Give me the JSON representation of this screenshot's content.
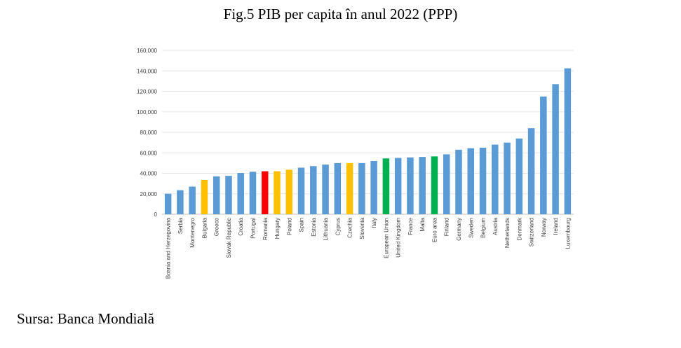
{
  "title": "Fig.5 PIB per capita în anul 2022 (PPP)",
  "source": "Sursa: Banca Mondială",
  "chart_data": {
    "type": "bar",
    "categories": [
      "Bosnia and Herzegovina",
      "Serbia",
      "Montenegro",
      "Bulgaria",
      "Greece",
      "Slovak Republic",
      "Croatia",
      "Portugal",
      "Romania",
      "Hungary",
      "Poland",
      "Spain",
      "Estonia",
      "Lithuania",
      "Cyprus",
      "Czechia",
      "Slovenia",
      "Italy",
      "European Union",
      "United Kingdom",
      "France",
      "Malta",
      "Euro area",
      "Finland",
      "Germany",
      "Sweden",
      "Belgium",
      "Austria",
      "Netherlands",
      "Denmark",
      "Switzerland",
      "Norway",
      "Ireland",
      "Luxembourg"
    ],
    "values": [
      20000,
      23500,
      27000,
      33500,
      37000,
      37500,
      40300,
      41500,
      42000,
      42000,
      43500,
      45500,
      47000,
      48500,
      50000,
      50000,
      50000,
      52000,
      54500,
      55000,
      55500,
      56000,
      56500,
      58500,
      63000,
      64500,
      65000,
      68000,
      70000,
      74000,
      84000,
      115000,
      127000,
      142500
    ],
    "colors": [
      "#5b9bd5",
      "#5b9bd5",
      "#5b9bd5",
      "#ffc000",
      "#5b9bd5",
      "#5b9bd5",
      "#5b9bd5",
      "#5b9bd5",
      "#ff0000",
      "#ffc000",
      "#ffc000",
      "#5b9bd5",
      "#5b9bd5",
      "#5b9bd5",
      "#5b9bd5",
      "#ffc000",
      "#5b9bd5",
      "#5b9bd5",
      "#00b050",
      "#5b9bd5",
      "#5b9bd5",
      "#5b9bd5",
      "#00b050",
      "#5b9bd5",
      "#5b9bd5",
      "#5b9bd5",
      "#5b9bd5",
      "#5b9bd5",
      "#5b9bd5",
      "#5b9bd5",
      "#5b9bd5",
      "#5b9bd5",
      "#5b9bd5",
      "#5b9bd5"
    ],
    "yticks": [
      "0",
      "20,000",
      "40,000",
      "60,000",
      "80,000",
      "100,000",
      "120,000",
      "140,000",
      "160,000"
    ],
    "ylim": [
      0,
      160000
    ],
    "grid": true,
    "legend": "none",
    "xlabel": "",
    "ylabel": ""
  }
}
